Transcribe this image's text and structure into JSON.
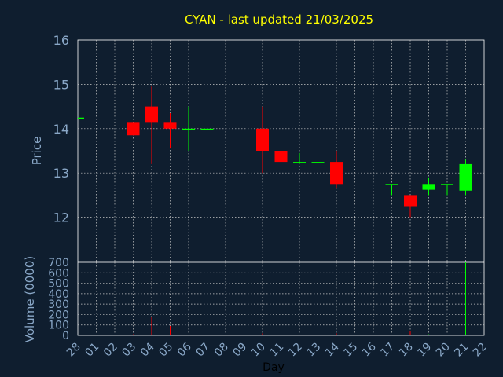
{
  "chart_data": {
    "type": "candlestick",
    "title": "CYAN - last updated 21/03/2025",
    "xlabel": "Day",
    "price_panel": {
      "ylabel": "Price",
      "ylim": [
        11,
        16
      ],
      "yticks": [
        12,
        13,
        14,
        15,
        16
      ],
      "grid": true
    },
    "volume_panel": {
      "ylabel": "Volume (0000)",
      "ylim": [
        0,
        700
      ],
      "yticks": [
        0,
        100,
        200,
        300,
        400,
        500,
        600,
        700
      ],
      "grid": true
    },
    "x_tick_labels": [
      "28",
      "01",
      "02",
      "03",
      "04",
      "05",
      "06",
      "07",
      "08",
      "09",
      "10",
      "11",
      "12",
      "13",
      "14",
      "15",
      "16",
      "17",
      "18",
      "19",
      "20",
      "21",
      "22"
    ],
    "up_color": "#00ff00",
    "down_color": "#ff0000",
    "candles": [
      {
        "day": "28",
        "open": 14.25,
        "high": 14.25,
        "low": 14.25,
        "close": 14.25,
        "volume": 0
      },
      {
        "day": "03",
        "open": 14.15,
        "high": 14.15,
        "low": 13.85,
        "close": 13.85,
        "volume": 10
      },
      {
        "day": "04",
        "open": 14.5,
        "high": 14.95,
        "low": 13.2,
        "close": 14.15,
        "volume": 180
      },
      {
        "day": "05",
        "open": 14.15,
        "high": 14.35,
        "low": 13.55,
        "close": 14.0,
        "volume": 90
      },
      {
        "day": "06",
        "open": 13.98,
        "high": 14.5,
        "low": 13.5,
        "close": 14.0,
        "volume": 5
      },
      {
        "day": "07",
        "open": 13.98,
        "high": 14.55,
        "low": 13.85,
        "close": 14.0,
        "volume": 5
      },
      {
        "day": "10",
        "open": 14.0,
        "high": 14.5,
        "low": 13.0,
        "close": 13.5,
        "volume": 20
      },
      {
        "day": "11",
        "open": 13.5,
        "high": 13.5,
        "low": 12.9,
        "close": 13.25,
        "volume": 40
      },
      {
        "day": "12",
        "open": 13.23,
        "high": 13.45,
        "low": 13.2,
        "close": 13.25,
        "volume": 5
      },
      {
        "day": "13",
        "open": 13.23,
        "high": 13.35,
        "low": 13.2,
        "close": 13.25,
        "volume": 5
      },
      {
        "day": "14",
        "open": 13.25,
        "high": 13.5,
        "low": 12.65,
        "close": 12.75,
        "volume": 20
      },
      {
        "day": "17",
        "open": 12.72,
        "high": 12.75,
        "low": 12.5,
        "close": 12.75,
        "volume": 5
      },
      {
        "day": "18",
        "open": 12.5,
        "high": 12.5,
        "low": 12.0,
        "close": 12.25,
        "volume": 40
      },
      {
        "day": "19",
        "open": 12.62,
        "high": 12.9,
        "low": 12.5,
        "close": 12.75,
        "volume": 10
      },
      {
        "day": "20",
        "open": 12.72,
        "high": 12.75,
        "low": 12.5,
        "close": 12.75,
        "volume": 5
      },
      {
        "day": "21",
        "open": 12.6,
        "high": 13.3,
        "low": 12.5,
        "close": 13.2,
        "volume": 700
      }
    ]
  }
}
